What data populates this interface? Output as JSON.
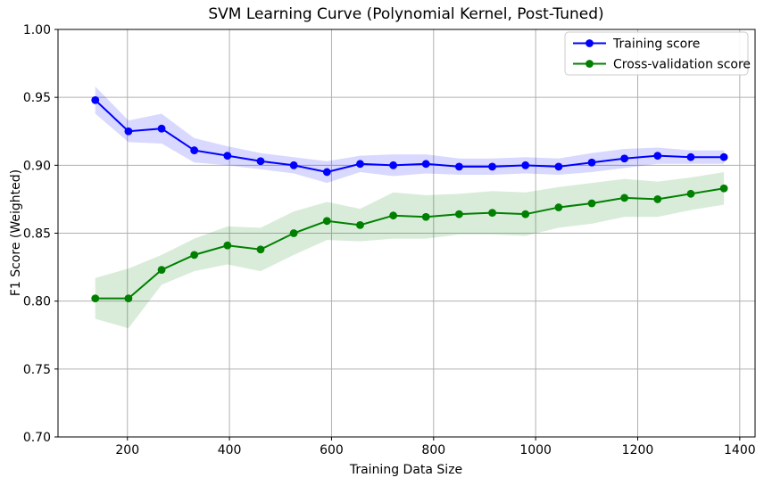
{
  "chart_data": {
    "type": "line",
    "title": "SVM Learning Curve (Polynomial Kernel, Post-Tuned)",
    "xlabel": "Training Data Size",
    "ylabel": "F1 Score (Weighted)",
    "xlim": [
      64,
      1430
    ],
    "ylim": [
      0.7,
      1.0
    ],
    "xticks": [
      200,
      400,
      600,
      800,
      1000,
      1200,
      1400
    ],
    "xtick_labels": [
      "200",
      "400",
      "600",
      "800",
      "1000",
      "1200",
      "1400"
    ],
    "yticks": [
      0.7,
      0.75,
      0.8,
      0.85,
      0.9,
      0.95,
      1.0
    ],
    "ytick_labels": [
      "0.70",
      "0.75",
      "0.80",
      "0.85",
      "0.90",
      "0.95",
      "1.00"
    ],
    "grid": true,
    "grid_color": "#b0b0b0",
    "legend_position": "upper right",
    "x": [
      137,
      202,
      267,
      331,
      396,
      461,
      526,
      591,
      656,
      721,
      785,
      850,
      915,
      980,
      1045,
      1110,
      1174,
      1239,
      1304,
      1369
    ],
    "series": [
      {
        "name": "Training score",
        "color": "#0000ff",
        "band_alpha": 0.15,
        "values": [
          0.948,
          0.925,
          0.927,
          0.911,
          0.907,
          0.903,
          0.9,
          0.895,
          0.901,
          0.9,
          0.901,
          0.899,
          0.899,
          0.9,
          0.899,
          0.902,
          0.905,
          0.907,
          0.906,
          0.906
        ],
        "std": [
          0.01,
          0.008,
          0.011,
          0.009,
          0.007,
          0.006,
          0.006,
          0.008,
          0.006,
          0.008,
          0.007,
          0.006,
          0.006,
          0.006,
          0.006,
          0.007,
          0.007,
          0.006,
          0.005,
          0.005
        ]
      },
      {
        "name": "Cross-validation score",
        "color": "#008000",
        "band_alpha": 0.15,
        "values": [
          0.802,
          0.802,
          0.823,
          0.834,
          0.841,
          0.838,
          0.85,
          0.859,
          0.856,
          0.863,
          0.862,
          0.864,
          0.865,
          0.864,
          0.869,
          0.872,
          0.876,
          0.875,
          0.879,
          0.883
        ],
        "std": [
          0.015,
          0.022,
          0.011,
          0.012,
          0.014,
          0.016,
          0.016,
          0.014,
          0.012,
          0.017,
          0.016,
          0.015,
          0.016,
          0.016,
          0.015,
          0.015,
          0.014,
          0.013,
          0.012,
          0.012
        ]
      }
    ]
  }
}
